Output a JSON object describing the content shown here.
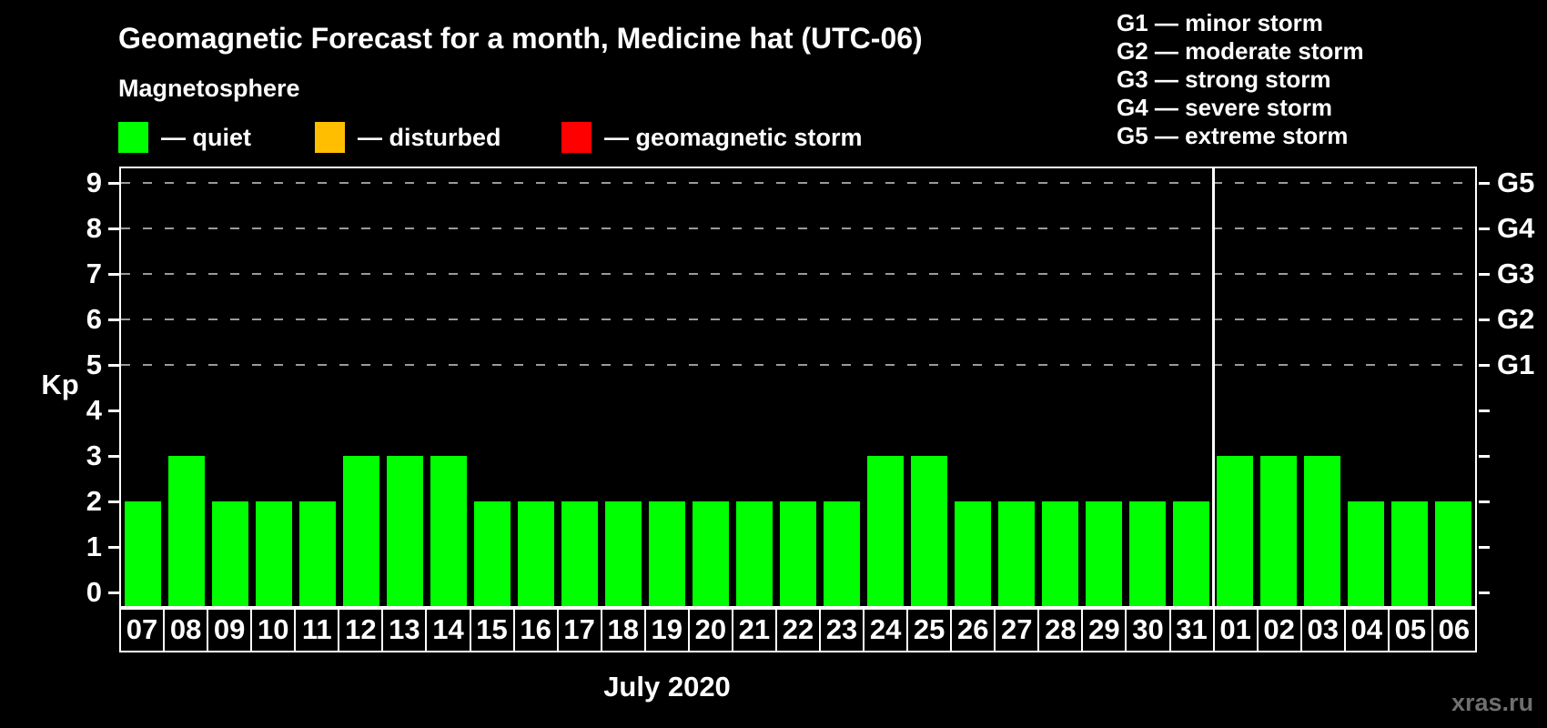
{
  "header": {
    "title": "Geomagnetic Forecast for a month, Medicine hat (UTC-06)"
  },
  "magnetosphere_legend": {
    "heading": "Magnetosphere",
    "items": [
      {
        "name": "quiet",
        "label": "— quiet",
        "color": "#00ff00"
      },
      {
        "name": "disturbed",
        "label": "— disturbed",
        "color": "#ffbf00"
      },
      {
        "name": "geomagnetic-storm",
        "label": "— geomagnetic storm",
        "color": "#ff0000"
      }
    ]
  },
  "g_scale_legend": {
    "items": [
      "G1 — minor storm",
      "G2 — moderate storm",
      "G3 — strong storm",
      "G4 — severe storm",
      "G5 — extreme storm"
    ]
  },
  "chart_data": {
    "type": "bar",
    "title": "Geomagnetic Forecast for a month, Medicine hat (UTC-06)",
    "xlabel": "July 2020",
    "ylabel": "Kp",
    "ylim": [
      0,
      9
    ],
    "grid": "dashed horizontal at Kp 5-9",
    "legend_position": "top",
    "categories": [
      "07",
      "08",
      "09",
      "10",
      "11",
      "12",
      "13",
      "14",
      "15",
      "16",
      "17",
      "18",
      "19",
      "20",
      "21",
      "22",
      "23",
      "24",
      "25",
      "26",
      "27",
      "28",
      "29",
      "30",
      "31",
      "01",
      "02",
      "03",
      "04",
      "05",
      "06"
    ],
    "values": [
      2,
      3,
      2,
      2,
      2,
      3,
      3,
      3,
      2,
      2,
      2,
      2,
      2,
      2,
      2,
      2,
      2,
      3,
      3,
      2,
      2,
      2,
      2,
      2,
      2,
      3,
      3,
      3,
      2,
      2,
      2
    ],
    "bar_color": "#00ff00",
    "left_ticks": [
      0,
      1,
      2,
      3,
      4,
      5,
      6,
      7,
      8,
      9
    ],
    "right_axis": [
      {
        "kp": 5,
        "label": "G1"
      },
      {
        "kp": 6,
        "label": "G2"
      },
      {
        "kp": 7,
        "label": "G3"
      },
      {
        "kp": 8,
        "label": "G4"
      },
      {
        "kp": 9,
        "label": "G5"
      }
    ],
    "grid_levels": [
      5,
      6,
      7,
      8,
      9
    ],
    "month_separator_after_index": 24
  },
  "footer": {
    "watermark": "xras.ru"
  }
}
